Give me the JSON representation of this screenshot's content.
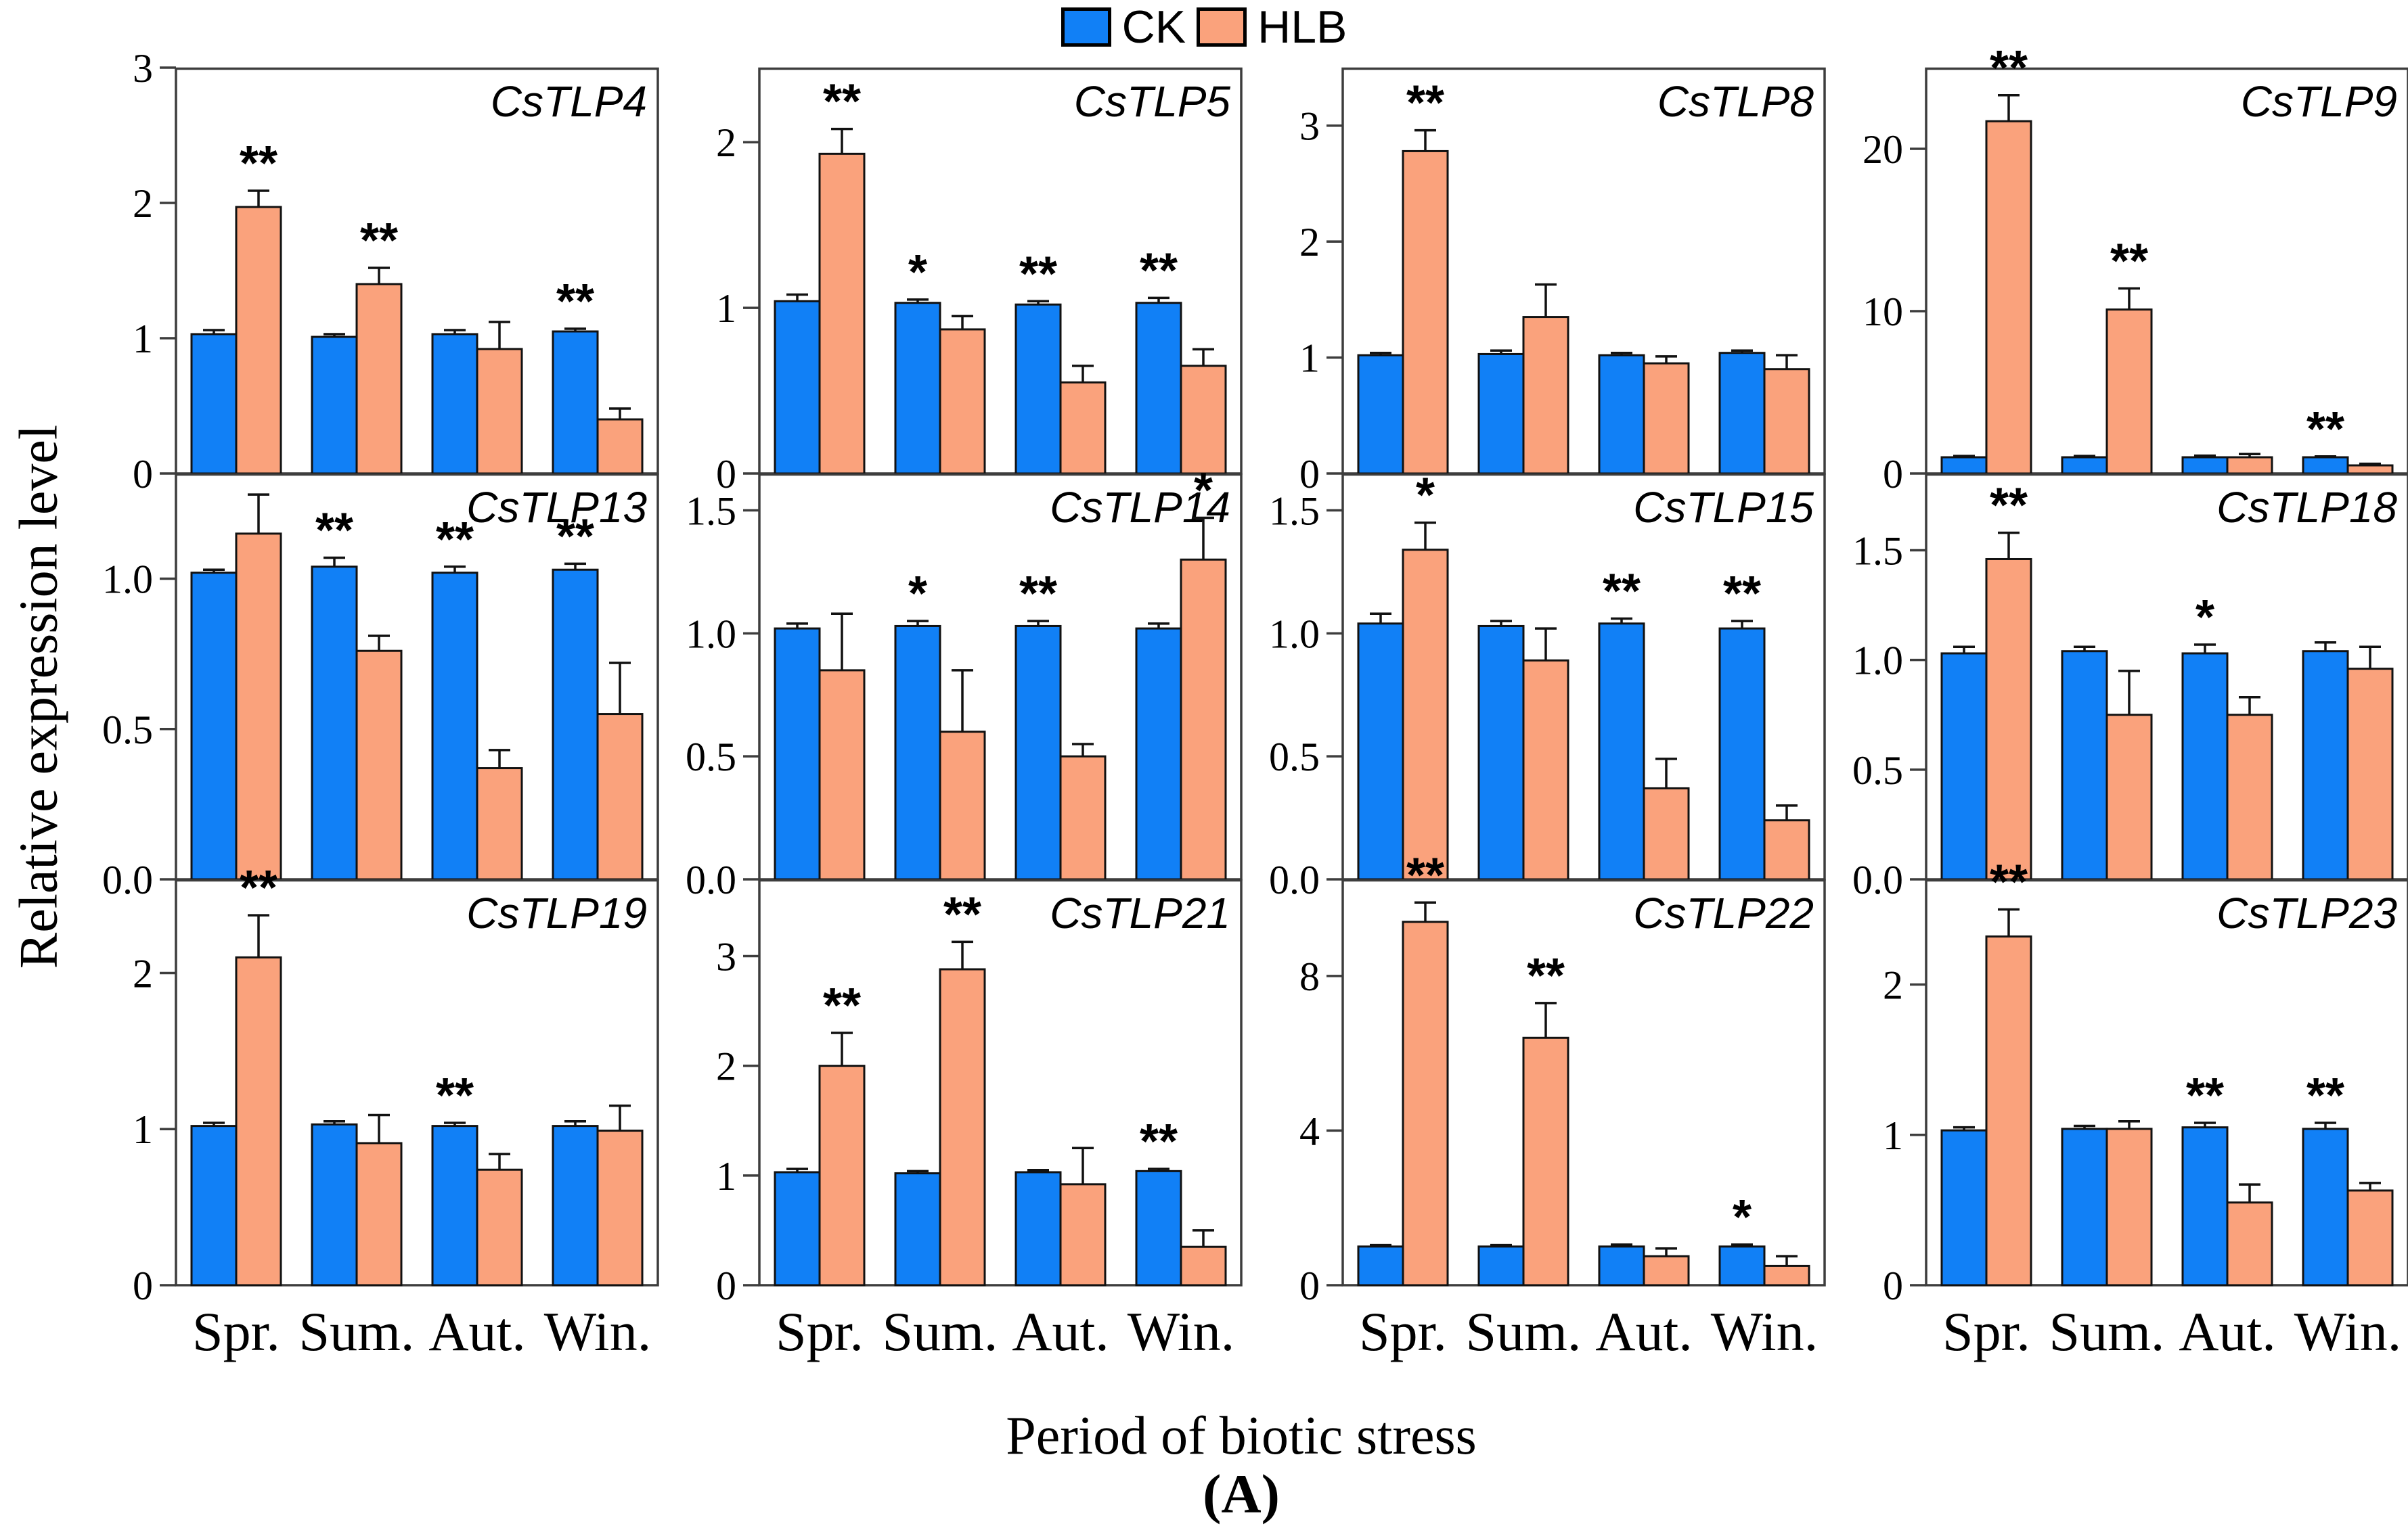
{
  "legend": {
    "entries": [
      {
        "label": "CK",
        "color": "#1180F6"
      },
      {
        "label": "HLB",
        "color": "#FAA27C"
      }
    ]
  },
  "axis": {
    "ylabel": "Relative expression level",
    "xlabel": "Period of biotic stress",
    "caption": "(A)"
  },
  "chart_data": {
    "type": "bar",
    "categories": [
      "Spr.",
      "Sum.",
      "Aut.",
      "Win."
    ],
    "series_names": [
      "CK",
      "HLB"
    ],
    "legend_position": "top",
    "grid": false,
    "colors": {
      "ck": "#1180F6",
      "hlb": "#FAA27C",
      "frame": "#3d3d3d",
      "bar_outline": "#111111"
    },
    "panels": [
      {
        "title": "CsTLP4",
        "ylim": 3.0,
        "yticks": [
          {
            "v": 0,
            "label": "0"
          },
          {
            "v": 1,
            "label": "1"
          },
          {
            "v": 2,
            "label": "2"
          },
          {
            "v": 3,
            "label": "3"
          }
        ],
        "ck": [
          1.03,
          1.01,
          1.03,
          1.05
        ],
        "ck_err": [
          0.03,
          0.02,
          0.03,
          0.02
        ],
        "hlb": [
          1.97,
          1.4,
          0.92,
          0.4
        ],
        "hlb_err": [
          0.12,
          0.12,
          0.2,
          0.08
        ],
        "sig": [
          "**",
          "**",
          null,
          "**"
        ],
        "sig_over": [
          "hlb",
          "hlb",
          null,
          "ck"
        ]
      },
      {
        "title": "CsTLP5",
        "ylim": 2.45,
        "yticks": [
          {
            "v": 0,
            "label": "0"
          },
          {
            "v": 1,
            "label": "1"
          },
          {
            "v": 2,
            "label": "2"
          }
        ],
        "ck": [
          1.04,
          1.03,
          1.02,
          1.03
        ],
        "ck_err": [
          0.04,
          0.02,
          0.02,
          0.03
        ],
        "hlb": [
          1.93,
          0.87,
          0.55,
          0.65
        ],
        "hlb_err": [
          0.15,
          0.08,
          0.1,
          0.1
        ],
        "sig": [
          "**",
          "*",
          "**",
          "**"
        ],
        "sig_over": [
          "hlb",
          "ck",
          "ck",
          "ck"
        ]
      },
      {
        "title": "CsTLP8",
        "ylim": 3.5,
        "yticks": [
          {
            "v": 0,
            "label": "0"
          },
          {
            "v": 1,
            "label": "1"
          },
          {
            "v": 2,
            "label": "2"
          },
          {
            "v": 3,
            "label": "3"
          }
        ],
        "ck": [
          1.02,
          1.03,
          1.02,
          1.04
        ],
        "ck_err": [
          0.02,
          0.03,
          0.02,
          0.02
        ],
        "hlb": [
          2.78,
          1.35,
          0.95,
          0.9
        ],
        "hlb_err": [
          0.18,
          0.28,
          0.06,
          0.12
        ],
        "sig": [
          "**",
          null,
          null,
          null
        ],
        "sig_over": [
          "hlb",
          null,
          null,
          null
        ]
      },
      {
        "title": "CsTLP9",
        "ylim": 25,
        "yticks": [
          {
            "v": 0,
            "label": "0"
          },
          {
            "v": 10,
            "label": "10"
          },
          {
            "v": 20,
            "label": "20"
          }
        ],
        "ck": [
          1.0,
          1.0,
          1.0,
          1.0
        ],
        "ck_err": [
          0.08,
          0.08,
          0.1,
          0.05
        ],
        "hlb": [
          21.7,
          10.1,
          1.0,
          0.5
        ],
        "hlb_err": [
          1.6,
          1.3,
          0.2,
          0.1
        ],
        "sig": [
          "**",
          "**",
          null,
          "**"
        ],
        "sig_over": [
          "hlb",
          "hlb",
          null,
          "ck"
        ]
      },
      {
        "title": "CsTLP13",
        "ylim": 1.35,
        "yticks": [
          {
            "v": 0,
            "label": "0.0"
          },
          {
            "v": 0.5,
            "label": "0.5"
          },
          {
            "v": 1.0,
            "label": "1.0"
          }
        ],
        "ck": [
          1.02,
          1.04,
          1.02,
          1.03
        ],
        "ck_err": [
          0.01,
          0.03,
          0.02,
          0.02
        ],
        "hlb": [
          1.15,
          0.76,
          0.37,
          0.55
        ],
        "hlb_err": [
          0.13,
          0.05,
          0.06,
          0.17
        ],
        "sig": [
          null,
          "**",
          "**",
          "**"
        ],
        "sig_over": [
          null,
          "ck",
          "ck",
          "ck"
        ]
      },
      {
        "title": "CsTLP14",
        "ylim": 1.65,
        "yticks": [
          {
            "v": 0,
            "label": "0.0"
          },
          {
            "v": 0.5,
            "label": "0.5"
          },
          {
            "v": 1.0,
            "label": "1.0"
          },
          {
            "v": 1.5,
            "label": "1.5"
          }
        ],
        "ck": [
          1.02,
          1.03,
          1.03,
          1.02
        ],
        "ck_err": [
          0.02,
          0.02,
          0.02,
          0.02
        ],
        "hlb": [
          0.85,
          0.6,
          0.5,
          1.3
        ],
        "hlb_err": [
          0.23,
          0.25,
          0.05,
          0.17
        ],
        "sig": [
          null,
          "*",
          "**",
          "*"
        ],
        "sig_over": [
          null,
          "ck",
          "ck",
          "hlb"
        ]
      },
      {
        "title": "CsTLP15",
        "ylim": 1.65,
        "yticks": [
          {
            "v": 0,
            "label": "0.0"
          },
          {
            "v": 0.5,
            "label": "0.5"
          },
          {
            "v": 1.0,
            "label": "1.0"
          },
          {
            "v": 1.5,
            "label": "1.5"
          }
        ],
        "ck": [
          1.04,
          1.03,
          1.04,
          1.02
        ],
        "ck_err": [
          0.04,
          0.02,
          0.02,
          0.03
        ],
        "hlb": [
          1.34,
          0.89,
          0.37,
          0.24
        ],
        "hlb_err": [
          0.11,
          0.13,
          0.12,
          0.06
        ],
        "sig": [
          "*",
          null,
          "**",
          "**"
        ],
        "sig_over": [
          "hlb",
          null,
          "ck",
          "ck"
        ]
      },
      {
        "title": "CsTLP18",
        "ylim": 1.85,
        "yticks": [
          {
            "v": 0,
            "label": "0.0"
          },
          {
            "v": 0.5,
            "label": "0.5"
          },
          {
            "v": 1.0,
            "label": "1.0"
          },
          {
            "v": 1.5,
            "label": "1.5"
          }
        ],
        "ck": [
          1.03,
          1.04,
          1.03,
          1.04
        ],
        "ck_err": [
          0.03,
          0.02,
          0.04,
          0.04
        ],
        "hlb": [
          1.46,
          0.75,
          0.75,
          0.96
        ],
        "hlb_err": [
          0.12,
          0.2,
          0.08,
          0.1
        ],
        "sig": [
          "**",
          null,
          "*",
          null
        ],
        "sig_over": [
          "hlb",
          null,
          "ck",
          null
        ]
      },
      {
        "title": "CsTLP19",
        "ylim": 2.6,
        "yticks": [
          {
            "v": 0,
            "label": "0"
          },
          {
            "v": 1,
            "label": "1"
          },
          {
            "v": 2,
            "label": "2"
          }
        ],
        "ck": [
          1.02,
          1.03,
          1.02,
          1.02
        ],
        "ck_err": [
          0.02,
          0.02,
          0.02,
          0.03
        ],
        "hlb": [
          2.1,
          0.91,
          0.74,
          0.99
        ],
        "hlb_err": [
          0.27,
          0.18,
          0.1,
          0.16
        ],
        "sig": [
          "**",
          null,
          "**",
          null
        ],
        "sig_over": [
          "hlb",
          null,
          "ck",
          null
        ]
      },
      {
        "title": "CsTLP21",
        "ylim": 3.7,
        "yticks": [
          {
            "v": 0,
            "label": "0"
          },
          {
            "v": 1,
            "label": "1"
          },
          {
            "v": 2,
            "label": "2"
          },
          {
            "v": 3,
            "label": "3"
          }
        ],
        "ck": [
          1.03,
          1.02,
          1.03,
          1.04
        ],
        "ck_err": [
          0.03,
          0.02,
          0.02,
          0.02
        ],
        "hlb": [
          2.0,
          2.88,
          0.92,
          0.35
        ],
        "hlb_err": [
          0.3,
          0.25,
          0.33,
          0.15
        ],
        "sig": [
          "**",
          "**",
          null,
          "**"
        ],
        "sig_over": [
          "hlb",
          "hlb",
          null,
          "ck"
        ]
      },
      {
        "title": "CsTLP22",
        "ylim": 10.5,
        "yticks": [
          {
            "v": 0,
            "label": "0"
          },
          {
            "v": 4,
            "label": "4"
          },
          {
            "v": 8,
            "label": "8"
          }
        ],
        "ck": [
          1.0,
          1.0,
          1.0,
          1.0
        ],
        "ck_err": [
          0.04,
          0.04,
          0.05,
          0.05
        ],
        "hlb": [
          9.4,
          6.4,
          0.75,
          0.5
        ],
        "hlb_err": [
          0.5,
          0.9,
          0.2,
          0.25
        ],
        "sig": [
          "**",
          "**",
          null,
          "*"
        ],
        "sig_over": [
          "hlb",
          "hlb",
          null,
          "ck"
        ]
      },
      {
        "title": "CsTLP23",
        "ylim": 2.7,
        "yticks": [
          {
            "v": 0,
            "label": "0"
          },
          {
            "v": 1,
            "label": "1"
          },
          {
            "v": 2,
            "label": "2"
          }
        ],
        "ck": [
          1.03,
          1.04,
          1.05,
          1.04
        ],
        "ck_err": [
          0.02,
          0.02,
          0.03,
          0.04
        ],
        "hlb": [
          2.32,
          1.04,
          0.55,
          0.63
        ],
        "hlb_err": [
          0.18,
          0.05,
          0.12,
          0.05
        ],
        "sig": [
          "**",
          null,
          "**",
          "**"
        ],
        "sig_over": [
          "hlb",
          null,
          "ck",
          "ck"
        ]
      }
    ]
  }
}
